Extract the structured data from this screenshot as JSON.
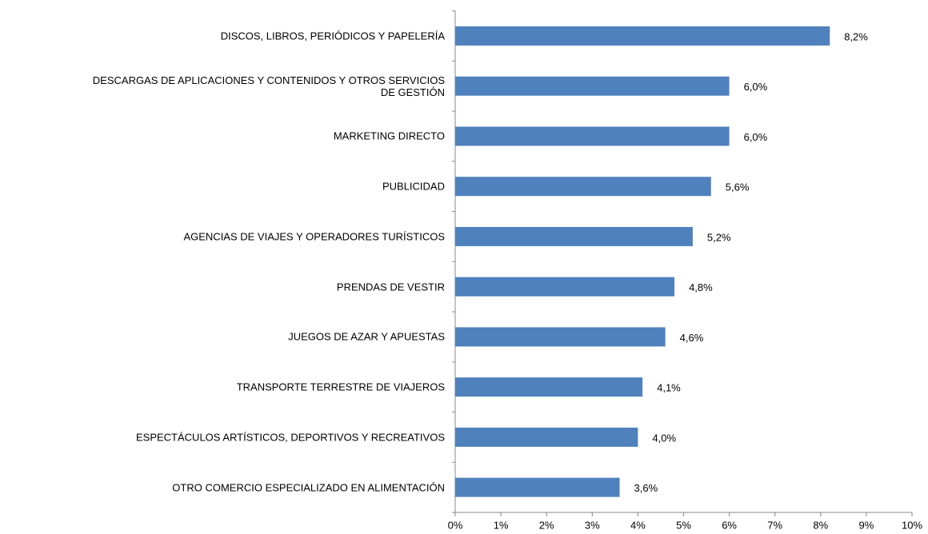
{
  "chart_data": {
    "type": "bar",
    "orientation": "horizontal",
    "categories": [
      "DISCOS, LIBROS, PERIÓDICOS Y PAPELERÍA",
      "DESCARGAS DE APLICACIONES Y CONTENIDOS Y OTROS SERVICIOS\nDE GESTIÓN",
      "MARKETING DIRECTO",
      "PUBLICIDAD",
      "AGENCIAS DE VIAJES Y OPERADORES TURÍSTICOS",
      "PRENDAS DE VESTIR",
      "JUEGOS DE AZAR Y APUESTAS",
      "TRANSPORTE TERRESTRE DE VIAJEROS",
      "ESPECTÁCULOS ARTÍSTICOS, DEPORTIVOS Y RECREATIVOS",
      "OTRO COMERCIO ESPECIALIZADO EN ALIMENTACIÓN"
    ],
    "values": [
      8.2,
      6.0,
      6.0,
      5.6,
      5.2,
      4.8,
      4.6,
      4.1,
      4.0,
      3.6
    ],
    "value_labels": [
      "8,2%",
      "6,0%",
      "6,0%",
      "5,6%",
      "5,2%",
      "4,8%",
      "4,6%",
      "4,1%",
      "4,0%",
      "3,6%"
    ],
    "color": "#4f81bd",
    "xlim": [
      0,
      10
    ],
    "xticks": [
      {
        "value": 0,
        "label": "0%"
      },
      {
        "value": 1,
        "label": "1%"
      },
      {
        "value": 2,
        "label": "2%"
      },
      {
        "value": 3,
        "label": "3%"
      },
      {
        "value": 4,
        "label": "4%"
      },
      {
        "value": 5,
        "label": "5%"
      },
      {
        "value": 6,
        "label": "6%"
      },
      {
        "value": 7,
        "label": "7%"
      },
      {
        "value": 8,
        "label": "8%"
      },
      {
        "value": 9,
        "label": "9%"
      },
      {
        "value": 10,
        "label": "10%"
      }
    ],
    "grid": false
  }
}
